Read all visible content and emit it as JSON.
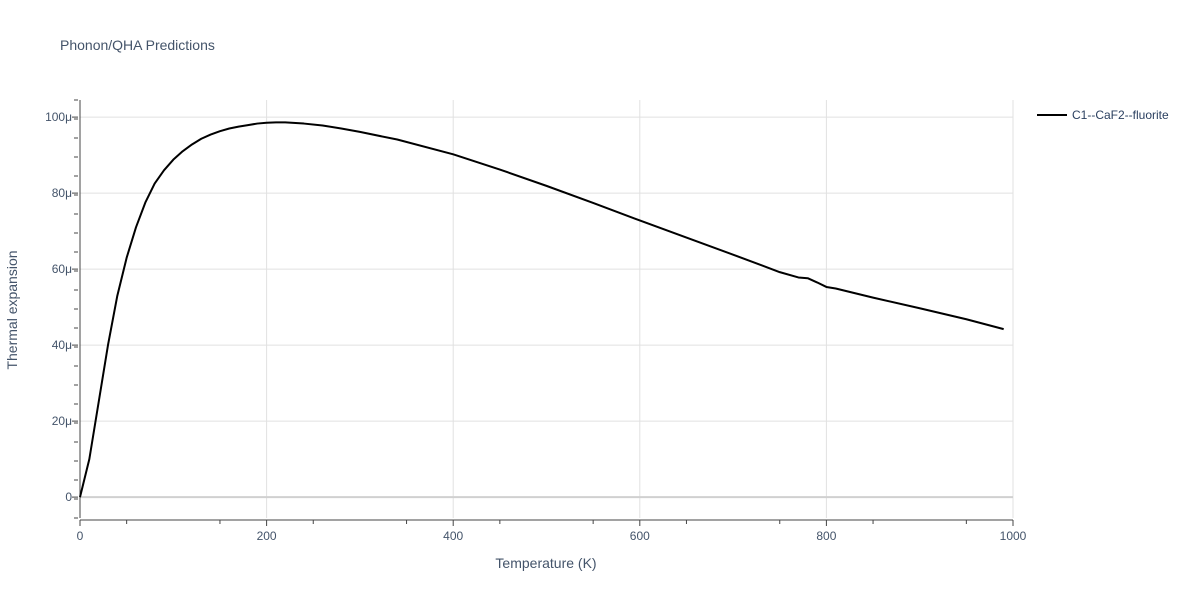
{
  "chart_data": {
    "type": "line",
    "title": "Phonon/QHA Predictions",
    "xlabel": "Temperature (K)",
    "ylabel": "Thermal expansion",
    "xlim": [
      0,
      1000
    ],
    "ylim": [
      -5.5e-06,
      0.0001045
    ],
    "xticks": [
      0,
      200,
      400,
      600,
      800,
      1000
    ],
    "xtick_labels": [
      "0",
      "200",
      "400",
      "600",
      "800",
      "1000"
    ],
    "yticks": [
      0,
      2e-05,
      4e-05,
      6e-05,
      8e-05,
      0.0001
    ],
    "ytick_labels": [
      "0",
      "20μ",
      "40μ",
      "60μ",
      "80μ",
      "100μ"
    ],
    "grid": true,
    "legend_position": "top-right",
    "series": [
      {
        "name": "C1--CaF2--fluorite",
        "color": "#000000",
        "x": [
          0,
          10,
          20,
          30,
          40,
          50,
          60,
          70,
          80,
          90,
          100,
          110,
          120,
          130,
          140,
          150,
          160,
          170,
          180,
          190,
          200,
          210,
          220,
          240,
          260,
          280,
          300,
          340,
          400,
          450,
          500,
          550,
          600,
          650,
          700,
          750,
          770,
          780,
          790,
          800,
          810,
          850,
          900,
          950,
          990
        ],
        "y": [
          0,
          1e-05,
          2.5e-05,
          4e-05,
          5.3e-05,
          6.3e-05,
          7.1e-05,
          7.75e-05,
          8.25e-05,
          8.6e-05,
          8.88e-05,
          9.1e-05,
          9.28e-05,
          9.43e-05,
          9.54e-05,
          9.63e-05,
          9.7e-05,
          9.75e-05,
          9.79e-05,
          9.83e-05,
          9.85e-05,
          9.86e-05,
          9.86e-05,
          9.83e-05,
          9.78e-05,
          9.7e-05,
          9.61e-05,
          9.41e-05,
          9.02e-05,
          8.62e-05,
          8.19e-05,
          7.74e-05,
          7.28e-05,
          6.83e-05,
          6.38e-05,
          5.92e-05,
          5.78e-05,
          5.76e-05,
          5.65e-05,
          5.53e-05,
          5.49e-05,
          5.25e-05,
          4.97e-05,
          4.68e-05,
          4.42e-05
        ]
      }
    ]
  }
}
